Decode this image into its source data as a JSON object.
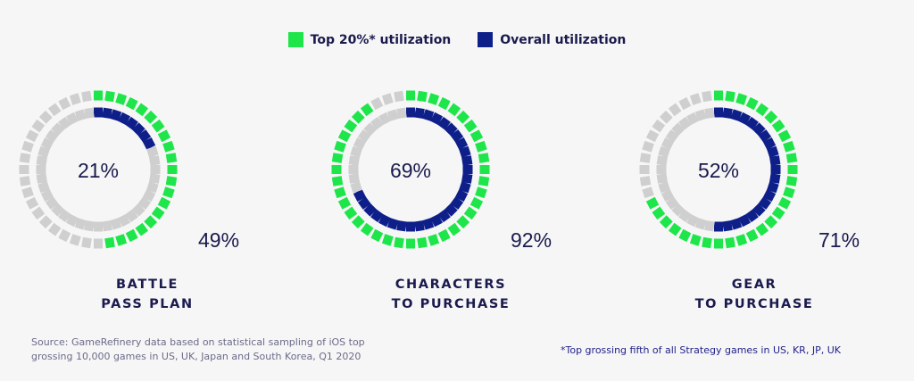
{
  "legend": {
    "top_label": "Top 20%* utilization",
    "overall_label": "Overall utilization"
  },
  "colors": {
    "top": "#1ee64a",
    "overall": "#0e1f8a",
    "empty": "#cfcfcf",
    "text": "#1a1a4e"
  },
  "chart_data": {
    "type": "pie",
    "series": [
      {
        "name": "Top 20%* utilization",
        "values": [
          49,
          92,
          71
        ]
      },
      {
        "name": "Overall utilization",
        "values": [
          21,
          69,
          52
        ]
      }
    ],
    "categories": [
      "BATTLE PASS PLAN",
      "CHARACTERS TO PURCHASE",
      "GEAR TO PURCHASE"
    ],
    "charts": [
      {
        "label": "BATTLE\nPASS PLAN",
        "top_value": 49,
        "overall_value": 21,
        "top_text": "49%",
        "overall_text": "21%"
      },
      {
        "label": "CHARACTERS\nTO PURCHASE",
        "top_value": 92,
        "overall_value": 69,
        "top_text": "92%",
        "overall_text": "69%"
      },
      {
        "label": "GEAR\nTO PURCHASE",
        "top_value": 71,
        "overall_value": 52,
        "top_text": "71%",
        "overall_text": "52%"
      }
    ]
  },
  "footnotes": {
    "source": "Source: GameRefinery data based on statistical sampling of iOS top grossing 10,000 games in US, UK, Japan and South Korea, Q1 2020",
    "definition": "*Top grossing fifth of all Strategy games in US, KR, JP, UK"
  }
}
